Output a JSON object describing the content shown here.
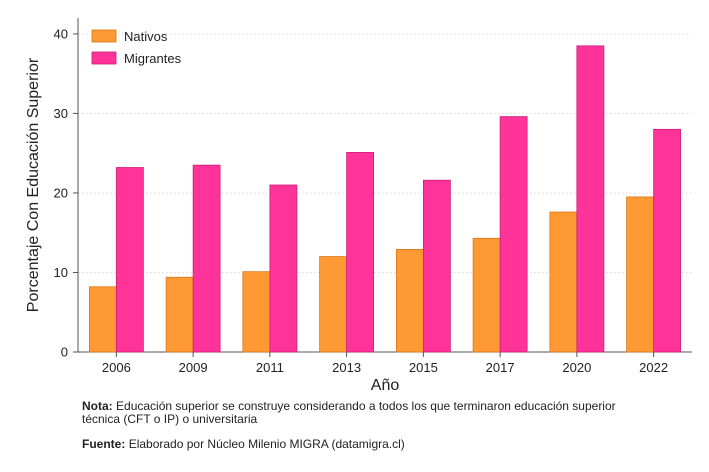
{
  "chart_data": {
    "type": "bar",
    "title": "",
    "xlabel": "Año",
    "ylabel": "Porcentaje Con Educación Superior",
    "categories": [
      "2006",
      "2009",
      "2011",
      "2013",
      "2015",
      "2017",
      "2020",
      "2022"
    ],
    "series": [
      {
        "name": "Nativos",
        "values": [
          8.2,
          9.4,
          10.1,
          12.0,
          12.9,
          14.3,
          17.6,
          19.5
        ]
      },
      {
        "name": "Migrantes",
        "values": [
          23.2,
          23.5,
          21.0,
          25.1,
          21.6,
          29.6,
          38.5,
          28.0
        ]
      }
    ],
    "ylim": [
      0,
      42
    ],
    "yticks": [
      0,
      10,
      20,
      30,
      40
    ],
    "grid": true,
    "legend_position": "top-left"
  },
  "colors": {
    "nativos": "#ff9933",
    "migrantes": "#ff3399",
    "nativos_edge": "#d8761a",
    "migrantes_edge": "#cc1f7a",
    "grid": "#d9d9d9",
    "axis": "#555555"
  },
  "notes": {
    "nota_label": "Nota:",
    "nota_text": "Educación superior se construye considerando a todos los que terminaron educación superior técnica (CFT o IP) o universitaria",
    "fuente_label": "Fuente:",
    "fuente_text": "Elaborado por Núcleo Milenio MIGRA (datamigra.cl)"
  }
}
